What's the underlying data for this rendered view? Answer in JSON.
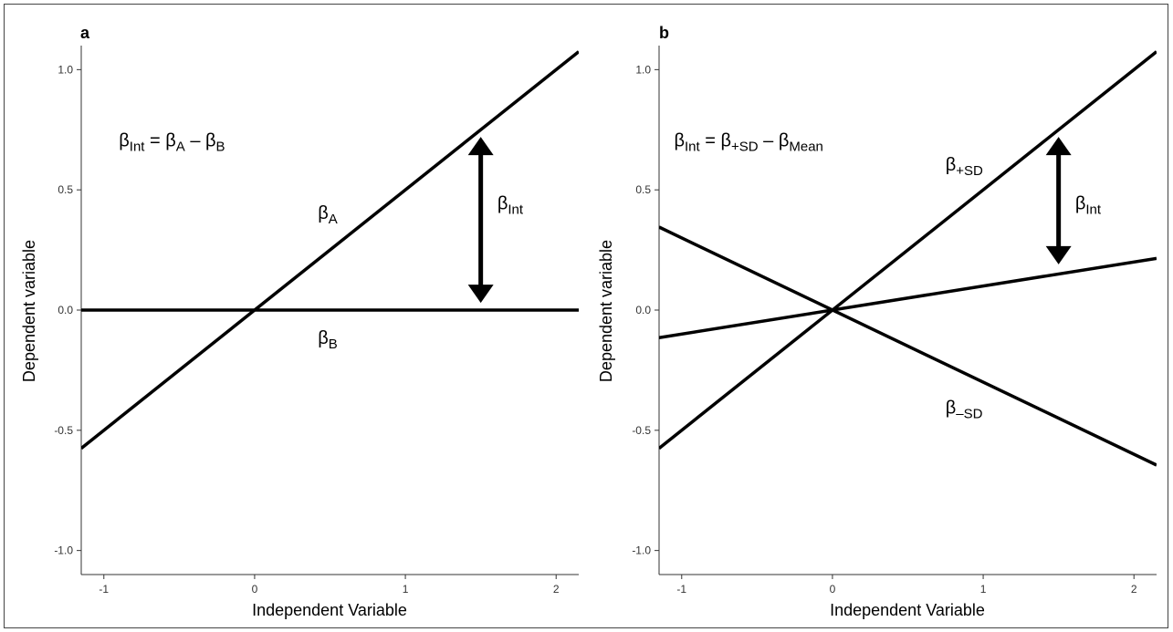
{
  "chart_data": [
    {
      "type": "line",
      "panel_label": "a",
      "xlabel": "Independent Variable",
      "ylabel": "Dependent variable",
      "xlim": [
        -1.15,
        2.15
      ],
      "ylim": [
        -1.1,
        1.1
      ],
      "x_ticks": [
        -1,
        0,
        1,
        2
      ],
      "y_ticks": [
        -1.0,
        -0.5,
        0.0,
        0.5,
        1.0
      ],
      "x_tick_labels": [
        "-1",
        "0",
        "1",
        "2"
      ],
      "y_tick_labels": [
        "-1.0",
        "-0.5",
        "0.0",
        "0.5",
        "1.0"
      ],
      "grid": false,
      "legend": "none",
      "series": [
        {
          "x": [
            -1.15,
            2.15
          ],
          "y": [
            -0.575,
            1.075
          ]
        },
        {
          "x": [
            -1.15,
            2.15
          ],
          "y": [
            0.0,
            0.0
          ]
        }
      ],
      "arrow": {
        "x": 1.5,
        "y_from": 0.03,
        "y_to": 0.72
      },
      "annotations": [
        {
          "parts": [
            [
              "β",
              ""
            ],
            [
              "Int",
              "sub"
            ],
            [
              " = β",
              ""
            ],
            [
              "A",
              "sub"
            ],
            [
              " – β",
              ""
            ],
            [
              "B",
              "sub"
            ]
          ],
          "x": -0.9,
          "y": 0.68
        },
        {
          "parts": [
            [
              "β",
              ""
            ],
            [
              "A",
              "sub"
            ]
          ],
          "x": 0.42,
          "y": 0.38
        },
        {
          "parts": [
            [
              "β",
              ""
            ],
            [
              "B",
              "sub"
            ]
          ],
          "x": 0.42,
          "y": -0.14
        },
        {
          "parts": [
            [
              "β",
              ""
            ],
            [
              "Int",
              "sub"
            ]
          ],
          "x": 1.61,
          "y": 0.42
        }
      ]
    },
    {
      "type": "line",
      "panel_label": "b",
      "xlabel": "Independent Variable",
      "ylabel": "Dependent variable",
      "xlim": [
        -1.15,
        2.15
      ],
      "ylim": [
        -1.1,
        1.1
      ],
      "x_ticks": [
        -1,
        0,
        1,
        2
      ],
      "y_ticks": [
        -1.0,
        -0.5,
        0.0,
        0.5,
        1.0
      ],
      "x_tick_labels": [
        "-1",
        "0",
        "1",
        "2"
      ],
      "y_tick_labels": [
        "-1.0",
        "-0.5",
        "0.0",
        "0.5",
        "1.0"
      ],
      "grid": false,
      "legend": "none",
      "series": [
        {
          "x": [
            -1.15,
            2.15
          ],
          "y": [
            -0.575,
            1.075
          ]
        },
        {
          "x": [
            -1.15,
            2.15
          ],
          "y": [
            -0.115,
            0.215
          ]
        },
        {
          "x": [
            -1.15,
            2.15
          ],
          "y": [
            0.345,
            -0.645
          ]
        }
      ],
      "arrow": {
        "x": 1.5,
        "y_from": 0.19,
        "y_to": 0.72
      },
      "annotations": [
        {
          "parts": [
            [
              "β",
              ""
            ],
            [
              "Int",
              "sub"
            ],
            [
              " = β",
              ""
            ],
            [
              "+SD",
              "sub"
            ],
            [
              " – β",
              ""
            ],
            [
              "Mean",
              "sub"
            ]
          ],
          "x": -1.05,
          "y": 0.68
        },
        {
          "parts": [
            [
              "β",
              ""
            ],
            [
              "+SD",
              "sub"
            ]
          ],
          "x": 0.75,
          "y": 0.58
        },
        {
          "parts": [
            [
              "β",
              ""
            ],
            [
              "–SD",
              "sub"
            ]
          ],
          "x": 0.75,
          "y": -0.43
        },
        {
          "parts": [
            [
              "β",
              ""
            ],
            [
              "Int",
              "sub"
            ]
          ],
          "x": 1.61,
          "y": 0.42
        }
      ]
    }
  ]
}
